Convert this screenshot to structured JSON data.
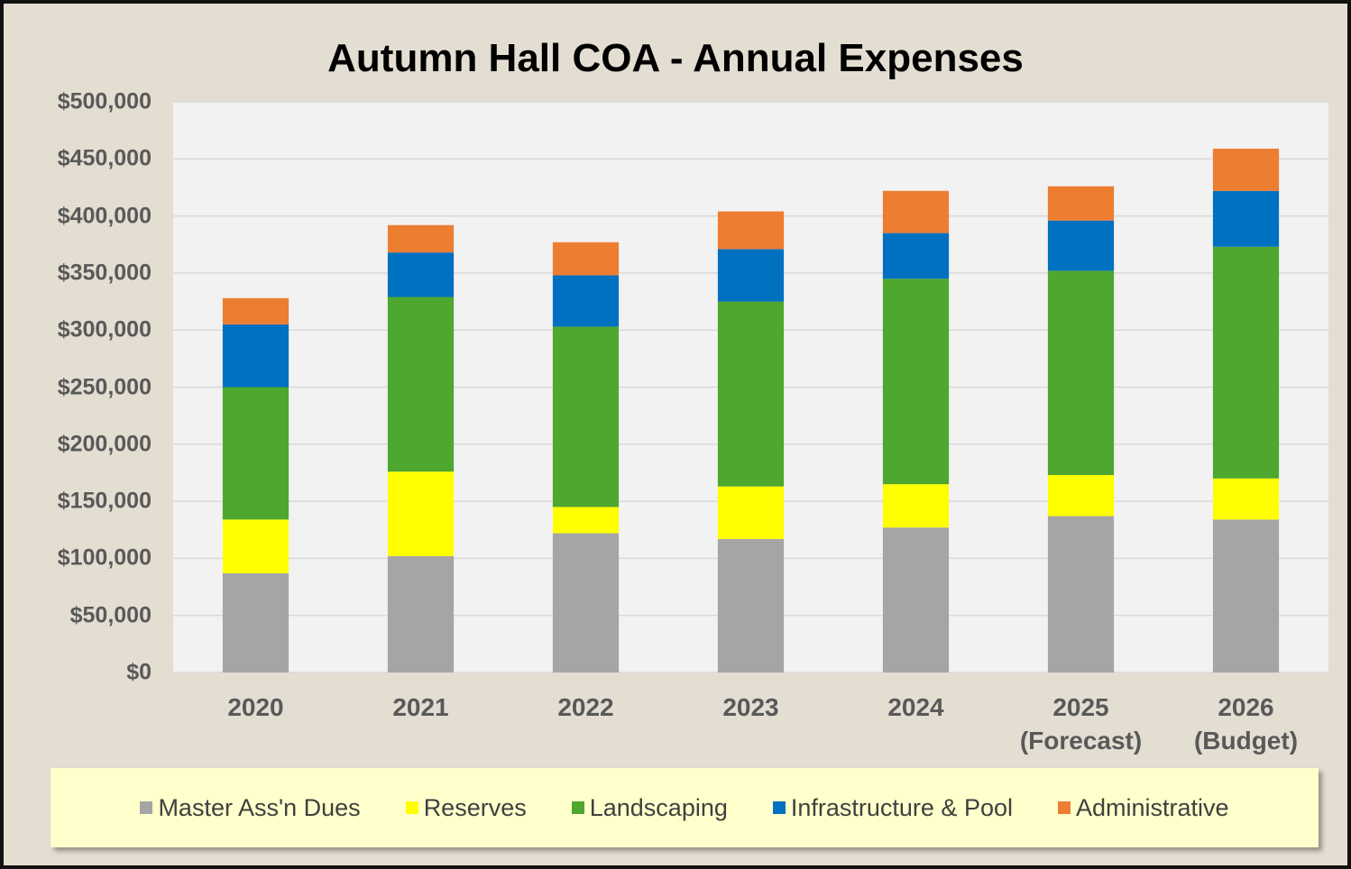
{
  "chart_data": {
    "type": "stacked_bar",
    "title": "Autumn Hall COA - Annual Expenses",
    "categories": [
      "2020",
      "2021",
      "2022",
      "2023",
      "2024",
      "2025\n(Forecast)",
      "2026\n(Budget)"
    ],
    "series": [
      {
        "name": "Master Ass'n Dues",
        "color": "#a5a5a5",
        "values": [
          87000,
          102000,
          122000,
          117000,
          127000,
          137000,
          134000
        ]
      },
      {
        "name": "Reserves",
        "color": "#ffff00",
        "values": [
          47000,
          74000,
          23000,
          46000,
          38000,
          36000,
          36000
        ]
      },
      {
        "name": "Landscaping",
        "color": "#4ea72e",
        "values": [
          116000,
          153000,
          158000,
          162000,
          180000,
          179000,
          203000
        ]
      },
      {
        "name": "Infrastructure & Pool",
        "color": "#0070c0",
        "values": [
          55000,
          39000,
          45000,
          46000,
          40000,
          44000,
          49000
        ]
      },
      {
        "name": "Administrative",
        "color": "#ed7d31",
        "values": [
          23000,
          24000,
          29000,
          33000,
          37000,
          30000,
          37000
        ]
      }
    ],
    "ylim": [
      0,
      500000
    ],
    "yticks": [
      {
        "value": 0,
        "label": "$0"
      },
      {
        "value": 50000,
        "label": "$50,000"
      },
      {
        "value": 100000,
        "label": "$100,000"
      },
      {
        "value": 150000,
        "label": "$150,000"
      },
      {
        "value": 200000,
        "label": "$200,000"
      },
      {
        "value": 250000,
        "label": "$250,000"
      },
      {
        "value": 300000,
        "label": "$300,000"
      },
      {
        "value": 350000,
        "label": "$350,000"
      },
      {
        "value": 400000,
        "label": "$400,000"
      },
      {
        "value": 450000,
        "label": "$450,000"
      },
      {
        "value": 500000,
        "label": "$500,000"
      }
    ],
    "grid": true,
    "legend": "bottom"
  }
}
